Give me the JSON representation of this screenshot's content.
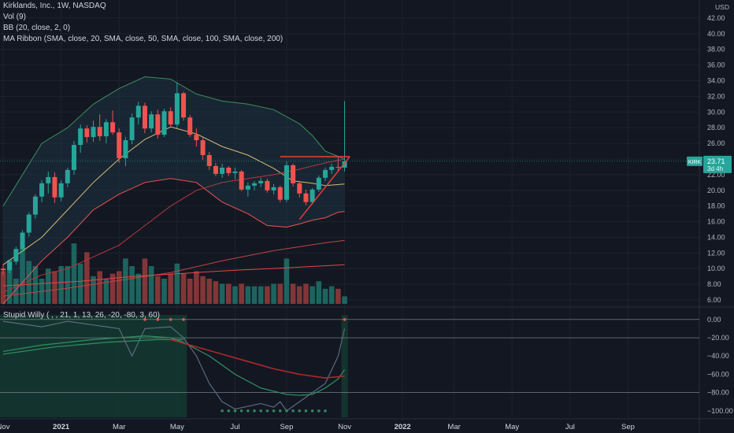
{
  "legend": {
    "title": "Kirklands, Inc., 1W, NASDAQ",
    "vol": "Vol (9)",
    "bb": "BB (20, close, 2, 0)",
    "ribbon": "MA Ribbon (SMA, close, 20, SMA, close, 50, SMA, close, 100, SMA, close, 200)",
    "osc": "Stupid Willy ( , , 21, 1, 13, 26, -20, -80, 3, 60)"
  },
  "price_axis": {
    "currency": "USD",
    "ticks": [
      "42.00",
      "40.00",
      "38.00",
      "36.00",
      "34.00",
      "32.00",
      "30.00",
      "28.00",
      "26.00",
      "24.00",
      "22.00",
      "20.00",
      "18.00",
      "16.00",
      "14.00",
      "12.00",
      "10.00",
      "8.00",
      "6.00"
    ],
    "tick_values": [
      42,
      40,
      38,
      36,
      34,
      32,
      30,
      28,
      26,
      24,
      22,
      20,
      18,
      16,
      14,
      12,
      10,
      8,
      6
    ],
    "ylim": [
      5.5,
      43.5
    ]
  },
  "osc_axis": {
    "ticks": [
      "0.00",
      "−20.00",
      "−40.00",
      "−60.00",
      "−80.00",
      "−100.00"
    ],
    "tick_values": [
      0,
      -20,
      -40,
      -60,
      -80,
      -100
    ],
    "ylim": [
      -107,
      5
    ],
    "levels": [
      0,
      -20,
      -80
    ]
  },
  "time_axis": {
    "labels": [
      "Nov",
      "2021",
      "Mar",
      "May",
      "Jul",
      "Sep",
      "Nov",
      "2022",
      "Mar",
      "May",
      "Jul",
      "Sep"
    ],
    "label_index": [
      0,
      9,
      18,
      27,
      36,
      44,
      53,
      62,
      70,
      79,
      88,
      97
    ]
  },
  "badge": {
    "symbol": "KIRK",
    "price": "23.71",
    "countdown": "3d 4h",
    "value": 23.71
  },
  "colors": {
    "background": "#131722",
    "up": "#26a69a",
    "down": "#ef5350",
    "bb_line": "#3c8f5c",
    "bb_fill": "#1e3a4a",
    "sma20": "#d9b778",
    "sma50": "#b23a3a",
    "sma100": "#c24444",
    "sma200": "#e84545",
    "osc_fast": "#5b6b80",
    "osc_mid": "#2e8a5e",
    "osc_slow": "#b0282a",
    "osc_zone": "#143a30",
    "trendline": "#f03c3c"
  },
  "chart_data": {
    "type": "candlestick",
    "note_x": "weekly bars, index 0 = first week of November 2020",
    "candles": [
      [
        10,
        10.6,
        9.2,
        9.8
      ],
      [
        9.8,
        11.2,
        9.4,
        10.9
      ],
      [
        10.9,
        12.8,
        10.5,
        12.5
      ],
      [
        12.5,
        14.9,
        12.1,
        14.6
      ],
      [
        14.6,
        17.2,
        14.1,
        16.9
      ],
      [
        16.9,
        19.5,
        16.4,
        19.2
      ],
      [
        19.2,
        21.3,
        18.5,
        20.9
      ],
      [
        20.9,
        22.4,
        19.6,
        21.7
      ],
      [
        21.7,
        22.3,
        18.4,
        19.1
      ],
      [
        19.1,
        21.3,
        18.6,
        20.9
      ],
      [
        20.9,
        22.9,
        20.4,
        22.6
      ],
      [
        22.6,
        26.3,
        22.0,
        25.8
      ],
      [
        25.8,
        28.4,
        24.8,
        27.9
      ],
      [
        27.9,
        28.3,
        26.1,
        26.8
      ],
      [
        26.8,
        28.9,
        26.2,
        28.1
      ],
      [
        28.1,
        29.7,
        26.3,
        26.9
      ],
      [
        26.9,
        29.1,
        26.0,
        28.7
      ],
      [
        28.7,
        30.2,
        27.1,
        27.4
      ],
      [
        27.4,
        27.9,
        23.5,
        24.1
      ],
      [
        24.1,
        26.8,
        23.1,
        26.4
      ],
      [
        26.4,
        29.8,
        25.9,
        29.3
      ],
      [
        29.3,
        31.3,
        28.4,
        30.8
      ],
      [
        30.8,
        31.2,
        27.3,
        27.9
      ],
      [
        27.9,
        30.1,
        27.4,
        29.7
      ],
      [
        29.7,
        30.3,
        26.6,
        27.1
      ],
      [
        27.1,
        30.4,
        26.8,
        30.1
      ],
      [
        30.1,
        30.6,
        28.0,
        28.4
      ],
      [
        28.4,
        33.8,
        27.9,
        32.4
      ],
      [
        32.4,
        32.6,
        28.9,
        29.3
      ],
      [
        29.3,
        29.6,
        26.8,
        27.1
      ],
      [
        27.1,
        27.9,
        25.6,
        26.4
      ],
      [
        26.4,
        26.8,
        23.9,
        24.5
      ],
      [
        24.5,
        24.9,
        22.6,
        23.1
      ],
      [
        23.1,
        23.5,
        21.8,
        22.1
      ],
      [
        22.1,
        23.4,
        21.6,
        22.9
      ],
      [
        22.9,
        23.1,
        21.8,
        22.2
      ],
      [
        22.2,
        22.9,
        21.4,
        22.4
      ],
      [
        22.4,
        22.6,
        19.9,
        20.1
      ],
      [
        20.1,
        21.0,
        19.2,
        20.6
      ],
      [
        20.6,
        21.2,
        20.0,
        20.9
      ],
      [
        20.9,
        21.6,
        20.4,
        21.2
      ],
      [
        21.2,
        21.5,
        19.7,
        20.0
      ],
      [
        20.0,
        20.8,
        19.5,
        20.4
      ],
      [
        20.4,
        20.6,
        18.5,
        18.8
      ],
      [
        18.8,
        23.7,
        18.5,
        23.2
      ],
      [
        23.2,
        23.4,
        20.5,
        20.9
      ],
      [
        20.9,
        21.2,
        19.1,
        19.6
      ],
      [
        19.6,
        20.1,
        18.1,
        18.5
      ],
      [
        18.5,
        20.3,
        18.2,
        20.1
      ],
      [
        20.1,
        21.9,
        19.8,
        21.6
      ],
      [
        21.6,
        22.9,
        21.2,
        22.6
      ],
      [
        22.6,
        23.4,
        22.1,
        23.0
      ],
      [
        23.0,
        24.3,
        22.5,
        22.9
      ],
      [
        22.9,
        31.4,
        22.4,
        23.71
      ]
    ],
    "volume_scale": [
      0.52,
      0.7,
      0.4,
      0.88,
      0.68,
      0.6,
      0.4,
      0.56,
      0.52,
      0.6,
      0.6,
      0.96,
      0.64,
      0.82,
      0.44,
      0.52,
      0.4,
      0.48,
      0.52,
      0.72,
      0.6,
      0.48,
      0.72,
      0.6,
      0.44,
      0.4,
      0.48,
      0.64,
      0.48,
      0.4,
      0.52,
      0.44,
      0.4,
      0.36,
      0.32,
      0.32,
      0.28,
      0.32,
      0.28,
      0.28,
      0.28,
      0.28,
      0.32,
      0.32,
      0.72,
      0.32,
      0.28,
      0.32,
      0.28,
      0.36,
      0.24,
      0.28,
      0.24,
      0.12
    ],
    "series": [
      {
        "key": "bb_upper",
        "points": [
          [
            0,
            18
          ],
          [
            6,
            26
          ],
          [
            10,
            28
          ],
          [
            14,
            31
          ],
          [
            18,
            33
          ],
          [
            22,
            34.5
          ],
          [
            26,
            34.2
          ],
          [
            30,
            32.3
          ],
          [
            34,
            31.4
          ],
          [
            38,
            31
          ],
          [
            42,
            30.3
          ],
          [
            46,
            28.5
          ],
          [
            48,
            27
          ],
          [
            50,
            25
          ],
          [
            53,
            24
          ]
        ]
      },
      {
        "key": "bb_lower",
        "points": [
          [
            0,
            5.5
          ],
          [
            6,
            11
          ],
          [
            10,
            14
          ],
          [
            14,
            17.5
          ],
          [
            18,
            19.5
          ],
          [
            22,
            21
          ],
          [
            26,
            21.5
          ],
          [
            30,
            21
          ],
          [
            34,
            18.5
          ],
          [
            38,
            17
          ],
          [
            41,
            15.5
          ],
          [
            44,
            15.3
          ],
          [
            46,
            15.7
          ],
          [
            48,
            16.2
          ],
          [
            50,
            16.5
          ],
          [
            52,
            17.2
          ],
          [
            53,
            17.3
          ]
        ]
      },
      {
        "key": "sma20",
        "points": [
          [
            0,
            10.5
          ],
          [
            6,
            14
          ],
          [
            10,
            17.5
          ],
          [
            14,
            21
          ],
          [
            18,
            24
          ],
          [
            22,
            26.5
          ],
          [
            26,
            28.1
          ],
          [
            30,
            27.2
          ],
          [
            34,
            25.6
          ],
          [
            38,
            24.5
          ],
          [
            42,
            22.8
          ],
          [
            45,
            21.2
          ],
          [
            48,
            20.9
          ],
          [
            50,
            20.6
          ],
          [
            53,
            20.8
          ]
        ]
      },
      {
        "key": "sma50",
        "points": [
          [
            0,
            7
          ],
          [
            6,
            9.2
          ],
          [
            10,
            10
          ],
          [
            14,
            11.5
          ],
          [
            18,
            13
          ],
          [
            22,
            15.5
          ],
          [
            26,
            18
          ],
          [
            30,
            20
          ],
          [
            34,
            21
          ],
          [
            38,
            21.5
          ],
          [
            42,
            22
          ],
          [
            46,
            22.7
          ],
          [
            50,
            23.5
          ],
          [
            53,
            24
          ]
        ]
      },
      {
        "key": "sma100",
        "points": [
          [
            0,
            6.5
          ],
          [
            10,
            7.5
          ],
          [
            18,
            8.5
          ],
          [
            26,
            9.5
          ],
          [
            34,
            11
          ],
          [
            42,
            12.3
          ],
          [
            50,
            13.3
          ],
          [
            53,
            13.6
          ]
        ]
      },
      {
        "key": "sma200",
        "points": [
          [
            0,
            7.8
          ],
          [
            12,
            8.4
          ],
          [
            20,
            9
          ],
          [
            28,
            9.4
          ],
          [
            36,
            9.8
          ],
          [
            44,
            10.1
          ],
          [
            53,
            10.5
          ]
        ]
      },
      {
        "key": "trend_top",
        "points": [
          [
            43,
            24.3
          ],
          [
            53.8,
            24.3
          ]
        ]
      },
      {
        "key": "trend_bottom",
        "points": [
          [
            46,
            16.3
          ],
          [
            53.8,
            24.3
          ]
        ]
      },
      {
        "key": "osc_fast",
        "points": [
          [
            0,
            -2
          ],
          [
            6,
            -8
          ],
          [
            10,
            -2
          ],
          [
            14,
            -6
          ],
          [
            18,
            -10
          ],
          [
            20,
            -40
          ],
          [
            22,
            -10
          ],
          [
            26,
            -8
          ],
          [
            28,
            -20
          ],
          [
            30,
            -40
          ],
          [
            32,
            -70
          ],
          [
            34,
            -90
          ],
          [
            36,
            -98
          ],
          [
            38,
            -95
          ],
          [
            40,
            -92
          ],
          [
            42,
            -96
          ],
          [
            43,
            -90
          ],
          [
            44,
            -100
          ],
          [
            46,
            -90
          ],
          [
            48,
            -80
          ],
          [
            50,
            -70
          ],
          [
            52,
            -40
          ],
          [
            53,
            -10
          ]
        ]
      },
      {
        "key": "osc_mid",
        "points": [
          [
            0,
            -35
          ],
          [
            6,
            -28
          ],
          [
            10,
            -25
          ],
          [
            14,
            -22
          ],
          [
            18,
            -20
          ],
          [
            22,
            -18
          ],
          [
            26,
            -20
          ],
          [
            28,
            -25
          ],
          [
            32,
            -40
          ],
          [
            36,
            -60
          ],
          [
            40,
            -75
          ],
          [
            44,
            -82
          ],
          [
            46,
            -83
          ],
          [
            48,
            -82
          ],
          [
            50,
            -75
          ],
          [
            52,
            -65
          ],
          [
            53,
            -55
          ]
        ]
      },
      {
        "key": "osc_slow",
        "points": [
          [
            26,
            -22
          ],
          [
            30,
            -30
          ],
          [
            34,
            -38
          ],
          [
            38,
            -46
          ],
          [
            42,
            -54
          ],
          [
            46,
            -60
          ],
          [
            50,
            -64
          ],
          [
            53,
            -62
          ]
        ]
      },
      {
        "key": "osc_flat",
        "points": [
          [
            0,
            -38
          ],
          [
            8,
            -30
          ],
          [
            16,
            -25
          ],
          [
            24,
            -22
          ],
          [
            28,
            -22
          ]
        ]
      }
    ],
    "dots_top_index": [
      22,
      24,
      26,
      28
    ],
    "dots_bottom_index": [
      34,
      35,
      36,
      37,
      38,
      39,
      40,
      41,
      42,
      43,
      44,
      45,
      46,
      47,
      48,
      49,
      50
    ],
    "osc_zone_index": [
      [
        0,
        29
      ],
      [
        53,
        54
      ]
    ]
  }
}
